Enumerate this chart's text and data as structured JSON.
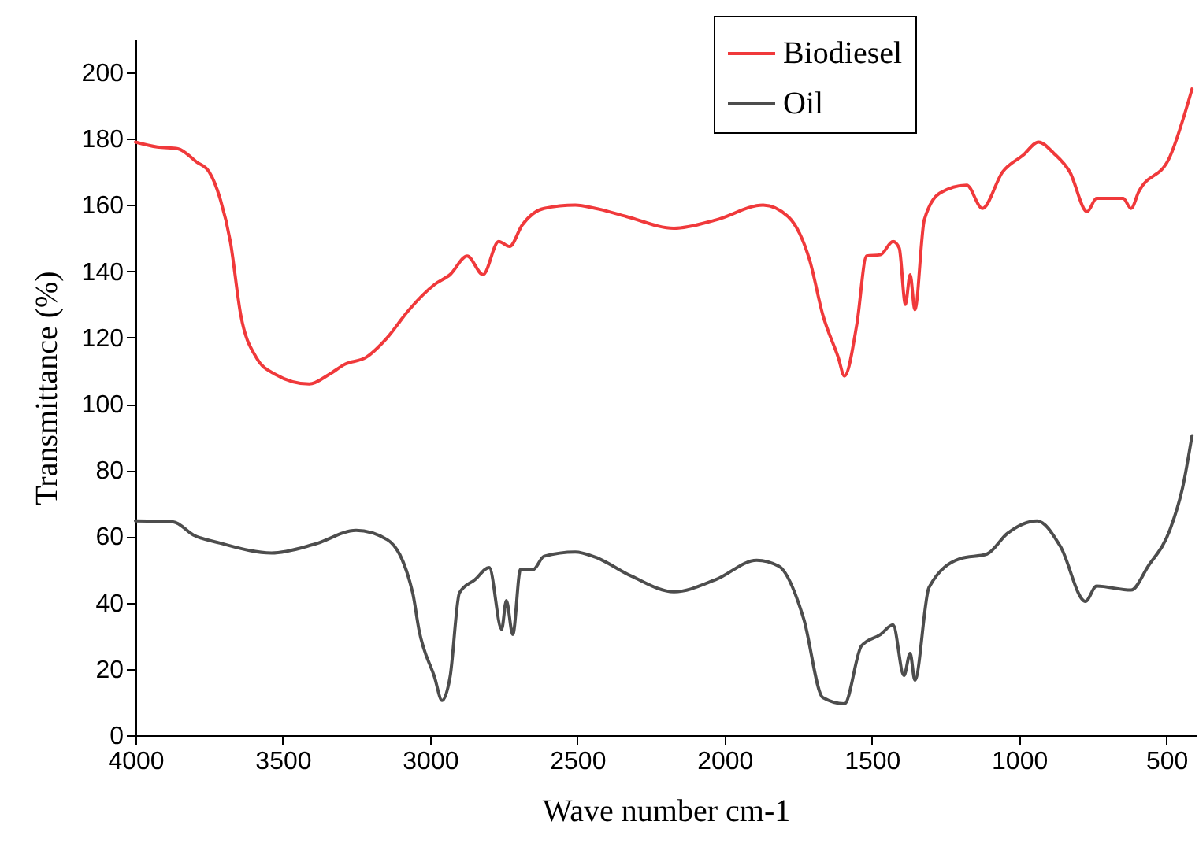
{
  "chart_data": {
    "type": "line",
    "xlabel": "Wave number cm-1",
    "ylabel": "Transmittance (%)",
    "xlim": [
      4000,
      400
    ],
    "xticks": [
      4000,
      3500,
      3000,
      2500,
      2000,
      1500,
      1000,
      500
    ],
    "ylim": [
      0,
      210
    ],
    "yticks": [
      0,
      20,
      40,
      60,
      80,
      100,
      120,
      140,
      160,
      180,
      200
    ],
    "grid": false,
    "legend": "top right",
    "line_style": "solid",
    "series": [
      {
        "name": "Biodiesel",
        "color": "#f0393b",
        "x": [
          4000,
          3926,
          3856,
          3793,
          3750,
          3713,
          3678,
          3643,
          3590,
          3527,
          3410,
          3341,
          3288,
          3218,
          3145,
          3075,
          2985,
          2932,
          2874,
          2820,
          2767,
          2730,
          2687,
          2613,
          2507,
          2438,
          2332,
          2172,
          2029,
          1869,
          1784,
          1710,
          1667,
          1614,
          1593,
          1551,
          1518,
          1471,
          1428,
          1407,
          1386,
          1370,
          1354,
          1322,
          1269,
          1178,
          1125,
          1056,
          987,
          934,
          881,
          828,
          769,
          737,
          647,
          620,
          594,
          488,
          413
        ],
        "values": [
          179,
          177.5,
          177,
          173,
          170,
          162,
          149,
          127,
          114,
          109,
          106,
          109,
          112,
          114,
          120,
          128,
          136,
          139,
          144.6,
          139,
          149,
          147.5,
          154,
          159,
          160,
          159,
          156.5,
          153,
          155.5,
          160,
          156.5,
          143,
          127,
          114,
          108.4,
          124,
          144.6,
          145,
          149,
          147,
          130,
          139,
          128.4,
          155.5,
          163.6,
          166,
          159,
          170,
          175,
          179,
          175.5,
          170,
          158,
          162,
          162,
          159,
          164,
          174.6,
          195
        ]
      },
      {
        "name": "Oil",
        "color": "#4d4d4d",
        "x": [
          4000,
          3872,
          3803,
          3713,
          3538,
          3394,
          3251,
          3145,
          3059,
          3038,
          2985,
          2959,
          2932,
          2900,
          2847,
          2799,
          2757,
          2741,
          2719,
          2693,
          2650,
          2613,
          2507,
          2438,
          2316,
          2172,
          2029,
          1891,
          1816,
          1731,
          1667,
          1593,
          1535,
          1471,
          1428,
          1391,
          1370,
          1354,
          1306,
          1200,
          1109,
          1040,
          939,
          860,
          775,
          737,
          620,
          562,
          488,
          445,
          413
        ],
        "values": [
          64.7,
          64.4,
          60.4,
          58,
          55,
          57.6,
          61.8,
          59,
          43,
          32,
          17.6,
          10.5,
          17.6,
          43,
          47,
          50.6,
          32,
          40.6,
          30.4,
          50,
          50,
          54,
          55.3,
          53.7,
          48,
          43.3,
          47,
          52.8,
          51,
          35,
          11.4,
          9.5,
          27,
          30.4,
          33.3,
          18,
          24.7,
          16.6,
          44.6,
          53.3,
          54.7,
          60.9,
          64.7,
          57,
          40.4,
          45,
          43.8,
          51,
          62,
          74.7,
          90.4
        ]
      }
    ]
  }
}
